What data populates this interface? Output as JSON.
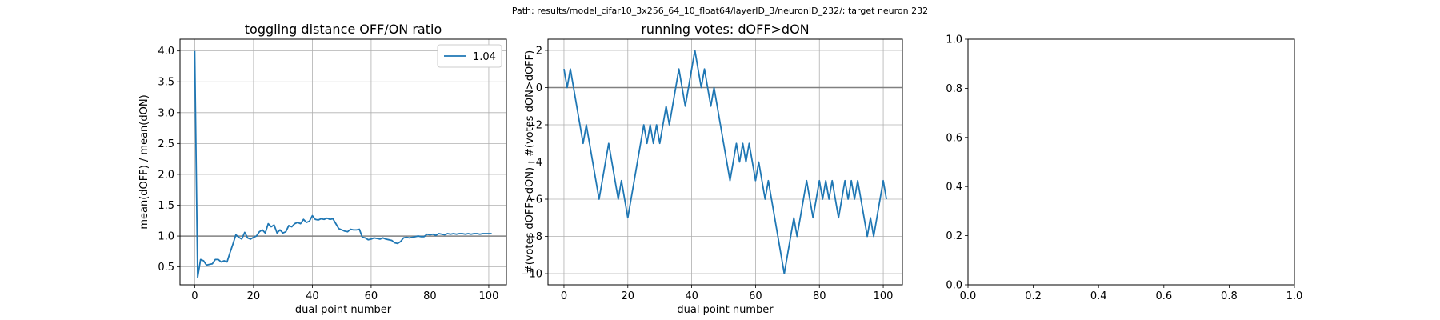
{
  "suptitle": "Path: results/model_cifar10_3x256_64_10_float64/layerID_3/neuronID_232/; target neuron 232",
  "chart_data": [
    {
      "type": "line",
      "title": "toggling distance OFF/ON ratio",
      "xlabel": "dual point number",
      "ylabel": "mean(dOFF) / mean(dON)",
      "xlim": [
        -5,
        106
      ],
      "ylim": [
        0.21,
        4.19
      ],
      "xticks": [
        0,
        20,
        40,
        60,
        80,
        100
      ],
      "yticks": [
        0.5,
        1.0,
        1.5,
        2.0,
        2.5,
        3.0,
        3.5,
        4.0
      ],
      "ytick_labels": [
        "0.5",
        "1.0",
        "1.5",
        "2.0",
        "2.5",
        "3.0",
        "3.5",
        "4.0"
      ],
      "grid": true,
      "hline": 1.0,
      "legend": {
        "position": "top-right",
        "entries": [
          "1.04"
        ]
      },
      "series": [
        {
          "name": "1.04",
          "color": "#1f77b4",
          "x": [
            0,
            1,
            2,
            3,
            4,
            5,
            6,
            7,
            8,
            9,
            10,
            11,
            12,
            13,
            14,
            15,
            16,
            17,
            18,
            19,
            20,
            21,
            22,
            23,
            24,
            25,
            26,
            27,
            28,
            29,
            30,
            31,
            32,
            33,
            34,
            35,
            36,
            37,
            38,
            39,
            40,
            41,
            42,
            43,
            44,
            45,
            46,
            47,
            48,
            49,
            50,
            51,
            52,
            53,
            54,
            55,
            56,
            57,
            58,
            59,
            60,
            61,
            62,
            63,
            64,
            65,
            66,
            67,
            68,
            69,
            70,
            71,
            72,
            73,
            74,
            75,
            76,
            77,
            78,
            79,
            80,
            81,
            82,
            83,
            84,
            85,
            86,
            87,
            88,
            89,
            90,
            91,
            92,
            93,
            94,
            95,
            96,
            97,
            98,
            99,
            100,
            101
          ],
          "values": [
            4.0,
            0.33,
            0.62,
            0.6,
            0.53,
            0.54,
            0.55,
            0.62,
            0.62,
            0.58,
            0.6,
            0.58,
            0.73,
            0.87,
            1.02,
            0.98,
            0.95,
            1.06,
            0.97,
            0.95,
            0.98,
            1.0,
            1.07,
            1.1,
            1.05,
            1.2,
            1.15,
            1.18,
            1.05,
            1.1,
            1.05,
            1.07,
            1.17,
            1.15,
            1.2,
            1.22,
            1.2,
            1.27,
            1.22,
            1.24,
            1.33,
            1.27,
            1.26,
            1.28,
            1.27,
            1.29,
            1.27,
            1.28,
            1.2,
            1.12,
            1.1,
            1.08,
            1.07,
            1.11,
            1.1,
            1.1,
            1.11,
            0.98,
            0.97,
            0.94,
            0.95,
            0.97,
            0.96,
            0.95,
            0.97,
            0.95,
            0.94,
            0.93,
            0.89,
            0.88,
            0.91,
            0.97,
            0.98,
            0.97,
            0.98,
            0.99,
            1.0,
            0.99,
            0.99,
            1.03,
            1.02,
            1.03,
            1.01,
            1.04,
            1.03,
            1.02,
            1.04,
            1.03,
            1.04,
            1.03,
            1.04,
            1.04,
            1.03,
            1.04,
            1.03,
            1.04,
            1.04,
            1.03,
            1.04,
            1.04,
            1.04,
            1.04
          ]
        }
      ]
    },
    {
      "type": "line",
      "title": "running votes: dOFF>dON",
      "xlabel": "dual point number",
      "ylabel": "#(votes dOFF>dON) - #(votes dON>dOFF)",
      "xlim": [
        -5,
        106
      ],
      "ylim": [
        -10.6,
        2.6
      ],
      "xticks": [
        0,
        20,
        40,
        60,
        80,
        100
      ],
      "yticks": [
        -10,
        -8,
        -6,
        -4,
        -2,
        0,
        2
      ],
      "ytick_labels": [
        "−10",
        "−8",
        "−6",
        "−4",
        "−2",
        "0",
        "2"
      ],
      "grid": true,
      "hline": 0,
      "series": [
        {
          "color": "#1f77b4",
          "x": [
            0,
            1,
            2,
            3,
            4,
            5,
            6,
            7,
            8,
            9,
            10,
            11,
            12,
            13,
            14,
            15,
            16,
            17,
            18,
            19,
            20,
            21,
            22,
            23,
            24,
            25,
            26,
            27,
            28,
            29,
            30,
            31,
            32,
            33,
            34,
            35,
            36,
            37,
            38,
            39,
            40,
            41,
            42,
            43,
            44,
            45,
            46,
            47,
            48,
            49,
            50,
            51,
            52,
            53,
            54,
            55,
            56,
            57,
            58,
            59,
            60,
            61,
            62,
            63,
            64,
            65,
            66,
            67,
            68,
            69,
            70,
            71,
            72,
            73,
            74,
            75,
            76,
            77,
            78,
            79,
            80,
            81,
            82,
            83,
            84,
            85,
            86,
            87,
            88,
            89,
            90,
            91,
            92,
            93,
            94,
            95,
            96,
            97,
            98,
            99,
            100,
            101
          ],
          "values": [
            1,
            0,
            1,
            0,
            -1,
            -2,
            -3,
            -2,
            -3,
            -4,
            -5,
            -6,
            -5,
            -4,
            -3,
            -4,
            -5,
            -6,
            -5,
            -6,
            -7,
            -6,
            -5,
            -4,
            -3,
            -2,
            -3,
            -2,
            -3,
            -2,
            -3,
            -2,
            -1,
            -2,
            -1,
            0,
            1,
            0,
            -1,
            0,
            1,
            2,
            1,
            0,
            1,
            0,
            -1,
            0,
            -1,
            -2,
            -3,
            -4,
            -5,
            -4,
            -3,
            -4,
            -3,
            -4,
            -3,
            -4,
            -5,
            -4,
            -5,
            -6,
            -5,
            -6,
            -7,
            -8,
            -9,
            -10,
            -9,
            -8,
            -7,
            -8,
            -7,
            -6,
            -5,
            -6,
            -7,
            -6,
            -5,
            -6,
            -5,
            -6,
            -5,
            -6,
            -7,
            -6,
            -5,
            -6,
            -5,
            -6,
            -5,
            -6,
            -7,
            -8,
            -7,
            -8,
            -7,
            -6,
            -5,
            -6
          ]
        }
      ]
    },
    {
      "type": "line",
      "title": "",
      "xlabel": "",
      "ylabel": "",
      "xlim": [
        0,
        1
      ],
      "ylim": [
        0,
        1
      ],
      "xticks": [
        0,
        0.2,
        0.4,
        0.6,
        0.8,
        1.0
      ],
      "xtick_labels": [
        "0.0",
        "0.2",
        "0.4",
        "0.6",
        "0.8",
        "1.0"
      ],
      "yticks": [
        0,
        0.2,
        0.4,
        0.6,
        0.8,
        1.0
      ],
      "ytick_labels": [
        "0.0",
        "0.2",
        "0.4",
        "0.6",
        "0.8",
        "1.0"
      ],
      "grid": false,
      "series": []
    }
  ]
}
